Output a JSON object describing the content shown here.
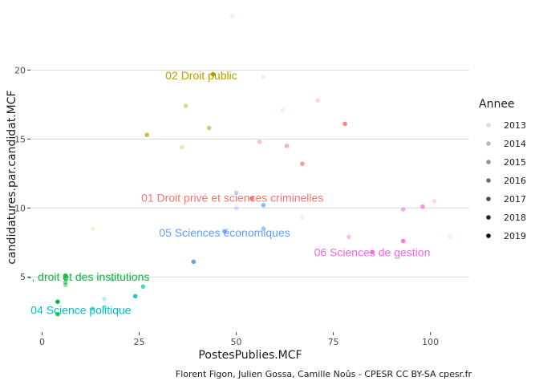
{
  "chart_data": {
    "type": "scatter",
    "xlabel": "PostesPublies.MCF",
    "ylabel": "candidatures.par.candidat.MCF",
    "xlim": [
      -3,
      110
    ],
    "ylim": [
      1.0,
      24.5
    ],
    "xticks": [
      0,
      25,
      50,
      75,
      100
    ],
    "yticks": [
      5,
      10,
      15,
      20
    ],
    "grid": true,
    "caption": "Florent Figon, Julien Gossa, Camille Noûs - CPESR CC BY-SA cpesr.fr",
    "legend": {
      "title": "Annee",
      "position": "right",
      "entries": [
        "2013",
        "2014",
        "2015",
        "2016",
        "2017",
        "2018",
        "2019"
      ],
      "alphas": [
        0.14,
        0.28,
        0.43,
        0.57,
        0.71,
        0.86,
        1.0
      ]
    },
    "series": [
      {
        "name": "01 Droit privé et sciences criminelles",
        "color": "#F8766D",
        "label_at": [
          49,
          10.75
        ],
        "points": [
          {
            "x": 62,
            "y": 17.1,
            "year": "2013"
          },
          {
            "x": 71,
            "y": 17.8,
            "year": "2014"
          },
          {
            "x": 56,
            "y": 14.8,
            "year": "2015"
          },
          {
            "x": 63,
            "y": 14.5,
            "year": "2016"
          },
          {
            "x": 67,
            "y": 13.2,
            "year": "2017"
          },
          {
            "x": 78,
            "y": 16.1,
            "year": "2018"
          },
          {
            "x": 54,
            "y": 10.7,
            "year": "2019"
          }
        ]
      },
      {
        "name": "02 Droit public",
        "color": "#B79F00",
        "label_at": [
          41,
          19.6
        ],
        "points": [
          {
            "x": 49,
            "y": 23.9,
            "year": "2013"
          },
          {
            "x": 57,
            "y": 19.5,
            "year": "2013"
          },
          {
            "x": 36,
            "y": 14.4,
            "year": "2014"
          },
          {
            "x": 37,
            "y": 17.4,
            "year": "2015"
          },
          {
            "x": 43,
            "y": 15.8,
            "year": "2016"
          },
          {
            "x": 27,
            "y": 15.3,
            "year": "2017"
          },
          {
            "x": 44,
            "y": 19.7,
            "year": "2019"
          }
        ]
      },
      {
        "name": "04 Droit et des institutions",
        "display": "-, droit et des institutions",
        "color": "#00BA38",
        "label_at": [
          12,
          5.0
        ],
        "points": [
          {
            "x": 18,
            "y": 4.8,
            "year": "2014"
          },
          {
            "x": 6,
            "y": 4.4,
            "year": "2015"
          },
          {
            "x": 6,
            "y": 4.6,
            "year": "2016"
          },
          {
            "x": 6,
            "y": 4.9,
            "year": "2017"
          },
          {
            "x": 6,
            "y": 5.1,
            "year": "2018"
          },
          {
            "x": 4,
            "y": 2.3,
            "year": "2018"
          },
          {
            "x": 4,
            "y": 3.2,
            "year": "2019"
          }
        ]
      },
      {
        "name": "04 Science politique",
        "color": "#00BFC4",
        "label_at": [
          10,
          2.6
        ],
        "points": [
          {
            "x": 16,
            "y": 3.4,
            "year": "2014"
          },
          {
            "x": 16,
            "y": 2.8,
            "year": "2015"
          },
          {
            "x": 13,
            "y": 2.7,
            "year": "2016"
          },
          {
            "x": 26,
            "y": 4.3,
            "year": "2017"
          },
          {
            "x": 24,
            "y": 3.6,
            "year": "2018"
          }
        ]
      },
      {
        "name": "05 Sciences économiques",
        "color": "#619CFF",
        "label_at": [
          47,
          8.2
        ],
        "points": [
          {
            "x": 67,
            "y": 9.3,
            "year": "2013"
          },
          {
            "x": 50,
            "y": 10.0,
            "year": "2014"
          },
          {
            "x": 50,
            "y": 11.1,
            "year": "2015"
          },
          {
            "x": 57,
            "y": 8.5,
            "year": "2016"
          },
          {
            "x": 57,
            "y": 10.2,
            "year": "2017"
          },
          {
            "x": 47,
            "y": 8.3,
            "year": "2018"
          },
          {
            "x": 39,
            "y": 6.1,
            "year": "2019"
          }
        ]
      },
      {
        "name": "06 Sciences de gestion",
        "color": "#F564E3",
        "label_at": [
          85,
          6.8
        ],
        "points": [
          {
            "x": 105,
            "y": 7.9,
            "year": "2013"
          },
          {
            "x": 101,
            "y": 10.5,
            "year": "2014"
          },
          {
            "x": 79,
            "y": 7.9,
            "year": "2015"
          },
          {
            "x": 93,
            "y": 9.9,
            "year": "2016"
          },
          {
            "x": 98,
            "y": 10.1,
            "year": "2017"
          },
          {
            "x": 93,
            "y": 7.6,
            "year": "2018"
          },
          {
            "x": 85,
            "y": 6.8,
            "year": "2019"
          }
        ]
      },
      {
        "name": "",
        "color": "#A3A500",
        "points": [
          {
            "x": 13,
            "y": 8.5,
            "year": "2013"
          }
        ]
      }
    ]
  }
}
